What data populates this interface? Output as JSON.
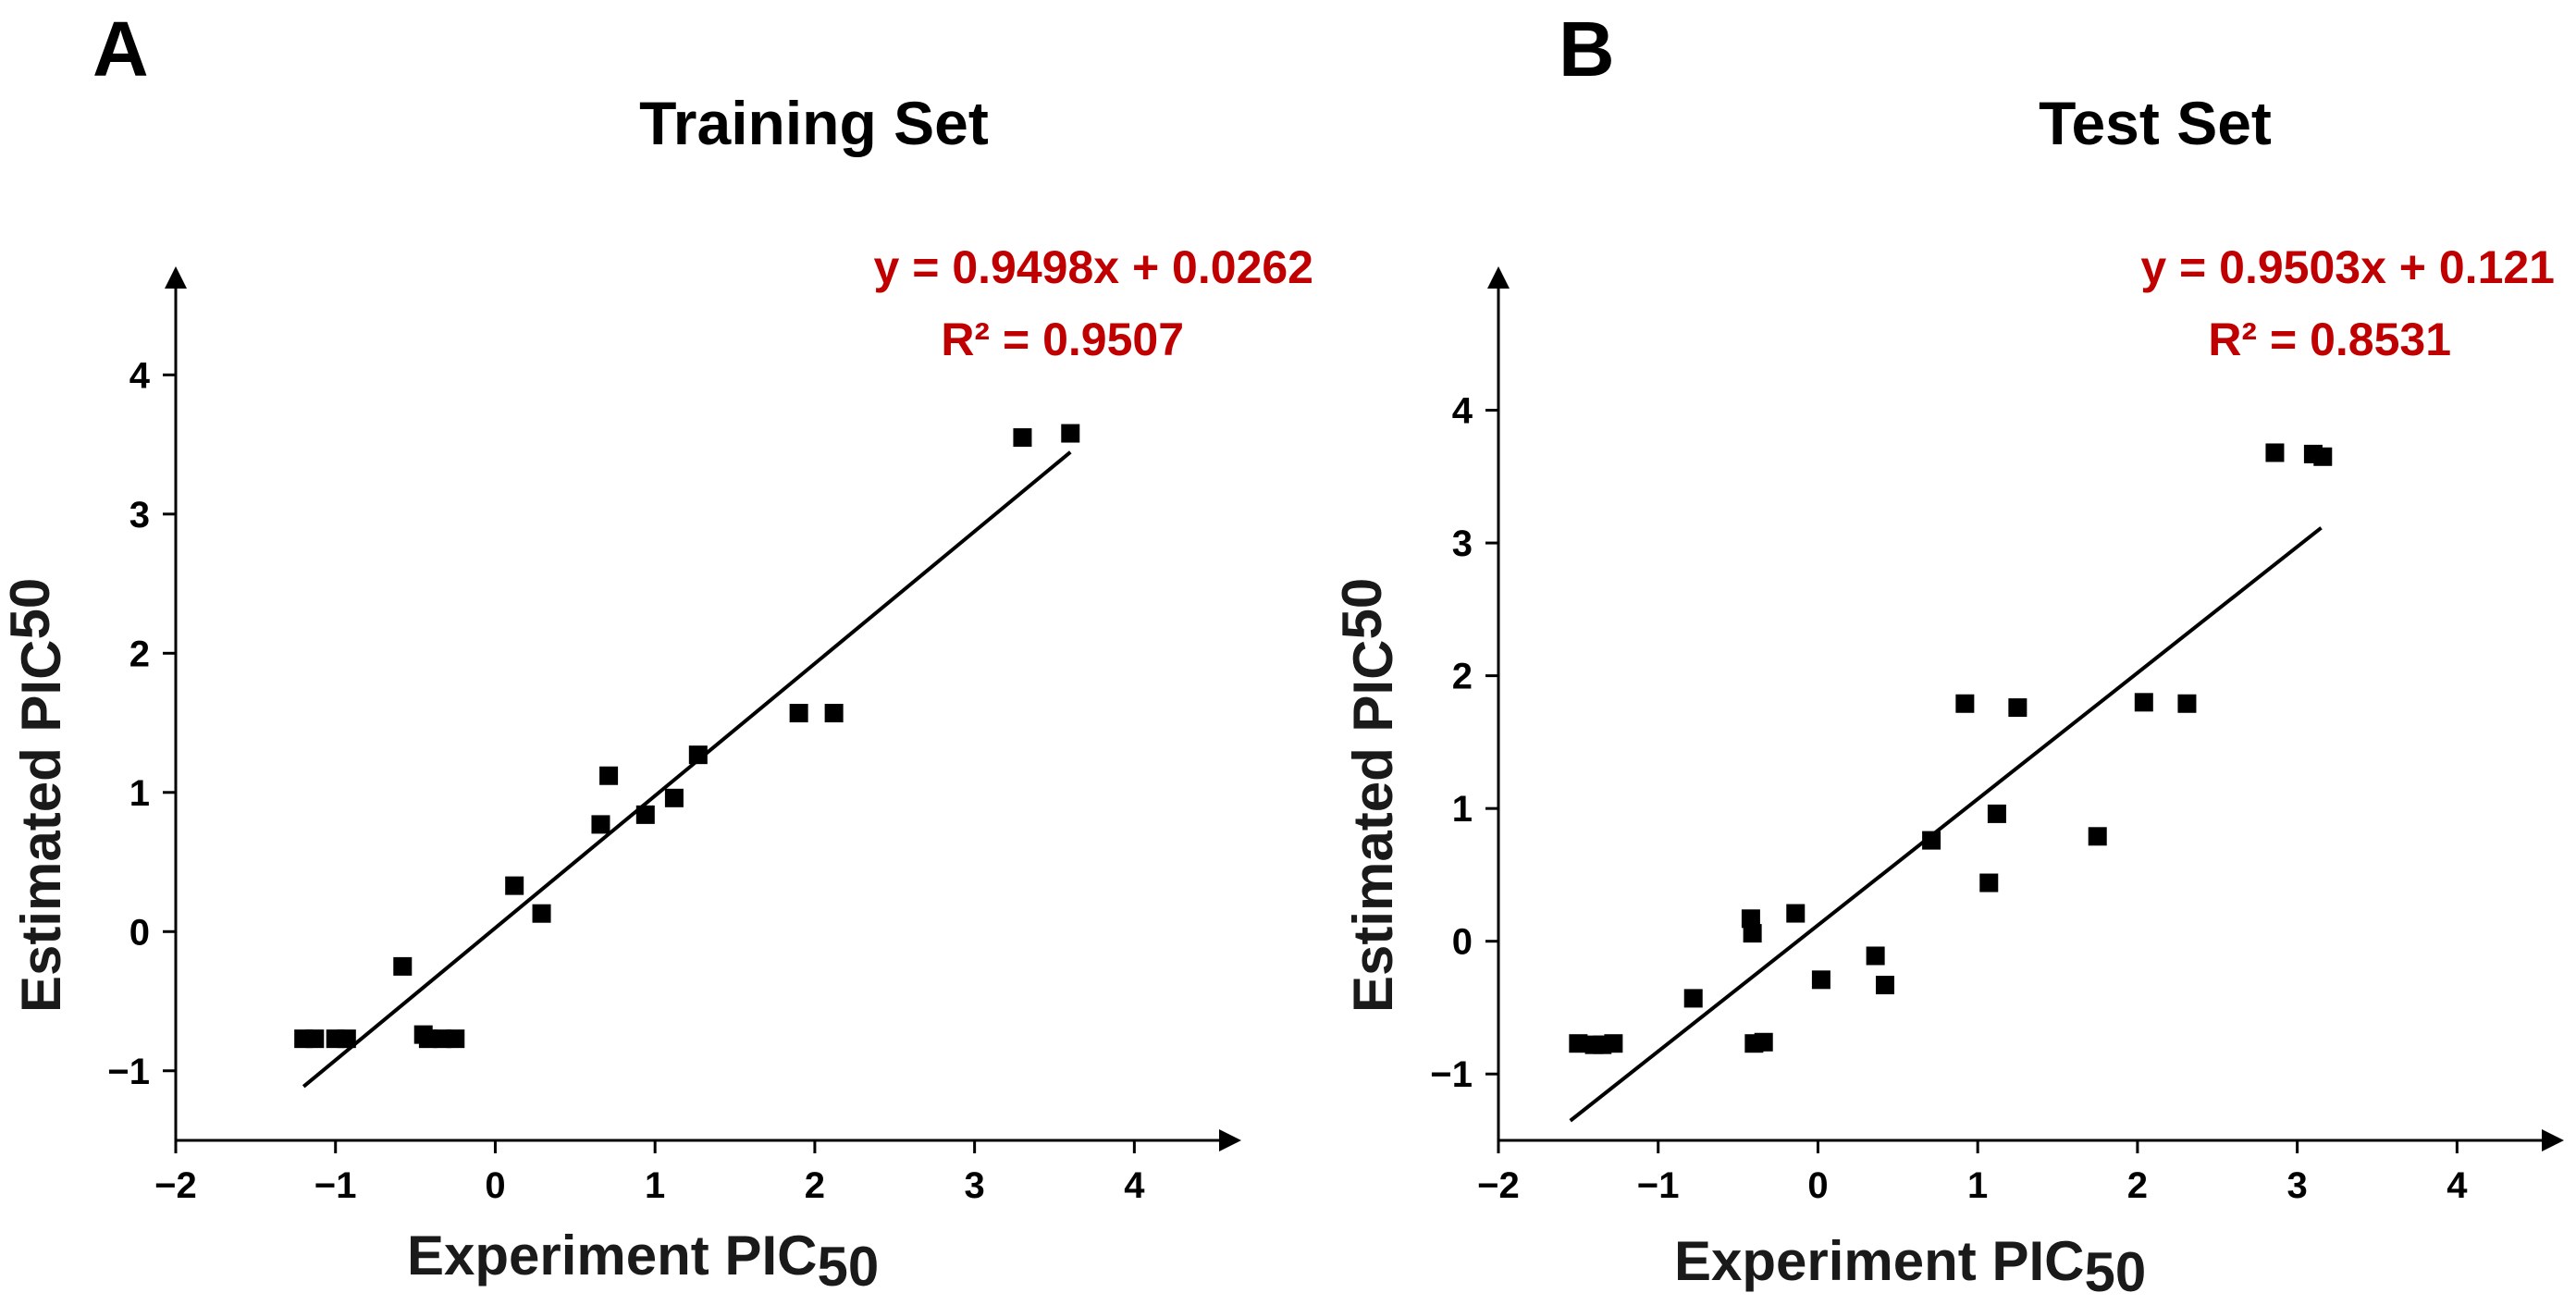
{
  "chart_data": [
    {
      "type": "scatter",
      "panel": "A",
      "title": "Training Set",
      "xlabel": "Experiment PIC",
      "xlabel_sub": "50",
      "ylabel": "Estimated PIC",
      "ylabel_sub": "50",
      "xlim": [
        -2,
        4.6
      ],
      "ylim": [
        -1.5,
        4.7
      ],
      "xticks": [
        -2,
        -1,
        0,
        1,
        2,
        3,
        4
      ],
      "yticks": [
        -1,
        0,
        1,
        2,
        3,
        4
      ],
      "xtick_labels": [
        "−2",
        "−1",
        "0",
        "1",
        "2",
        "3",
        "4"
      ],
      "ytick_labels": [
        "−1",
        "0",
        "1",
        "2",
        "3",
        "4"
      ],
      "equation": "y = 0.9498x + 0.0262",
      "r2": "R² = 0.9507",
      "fit": {
        "slope": 0.9498,
        "intercept": 0.0262,
        "x_range": [
          -1.2,
          3.6
        ]
      },
      "points": [
        {
          "x": -1.2,
          "y": -0.77
        },
        {
          "x": -1.13,
          "y": -0.77
        },
        {
          "x": -1.0,
          "y": -0.77
        },
        {
          "x": -0.93,
          "y": -0.77
        },
        {
          "x": -0.58,
          "y": -0.25
        },
        {
          "x": -0.45,
          "y": -0.74
        },
        {
          "x": -0.42,
          "y": -0.77
        },
        {
          "x": -0.33,
          "y": -0.77
        },
        {
          "x": -0.25,
          "y": -0.77
        },
        {
          "x": 0.12,
          "y": 0.33
        },
        {
          "x": 0.29,
          "y": 0.13
        },
        {
          "x": 0.66,
          "y": 0.77
        },
        {
          "x": 0.71,
          "y": 1.12
        },
        {
          "x": 0.94,
          "y": 0.84
        },
        {
          "x": 1.12,
          "y": 0.96
        },
        {
          "x": 1.27,
          "y": 1.27
        },
        {
          "x": 1.9,
          "y": 1.57
        },
        {
          "x": 2.12,
          "y": 1.57
        },
        {
          "x": 3.3,
          "y": 3.55
        },
        {
          "x": 3.6,
          "y": 3.58
        }
      ]
    },
    {
      "type": "scatter",
      "panel": "B",
      "title": "Test Set",
      "xlabel": "Experiment PIC",
      "xlabel_sub": "50",
      "ylabel": "Estimated PIC",
      "ylabel_sub": "50",
      "xlim": [
        -2,
        4.6
      ],
      "ylim": [
        -1.5,
        5.0
      ],
      "xticks": [
        -2,
        -1,
        0,
        1,
        2,
        3,
        4
      ],
      "yticks": [
        -1,
        0,
        1,
        2,
        3,
        4
      ],
      "xtick_labels": [
        "−2",
        "−1",
        "0",
        "1",
        "2",
        "3",
        "4"
      ],
      "ytick_labels": [
        "−1",
        "0",
        "1",
        "2",
        "3",
        "4"
      ],
      "equation": "y = 0.9503x + 0.121",
      "r2": "R² = 0.8531",
      "fit": {
        "slope": 0.9503,
        "intercept": 0.121,
        "x_range": [
          -1.55,
          3.15
        ]
      },
      "points": [
        {
          "x": -1.5,
          "y": -0.77
        },
        {
          "x": -1.4,
          "y": -0.78
        },
        {
          "x": -1.35,
          "y": -0.78
        },
        {
          "x": -1.28,
          "y": -0.77
        },
        {
          "x": -0.78,
          "y": -0.43
        },
        {
          "x": -0.42,
          "y": 0.17
        },
        {
          "x": -0.41,
          "y": 0.06
        },
        {
          "x": -0.4,
          "y": -0.77
        },
        {
          "x": -0.34,
          "y": -0.76
        },
        {
          "x": -0.14,
          "y": 0.21
        },
        {
          "x": 0.02,
          "y": -0.29
        },
        {
          "x": 0.36,
          "y": -0.11
        },
        {
          "x": 0.42,
          "y": -0.33
        },
        {
          "x": 0.71,
          "y": 0.76
        },
        {
          "x": 0.92,
          "y": 1.79
        },
        {
          "x": 1.07,
          "y": 0.44
        },
        {
          "x": 1.12,
          "y": 0.96
        },
        {
          "x": 1.25,
          "y": 1.76
        },
        {
          "x": 1.75,
          "y": 0.79
        },
        {
          "x": 2.04,
          "y": 1.8
        },
        {
          "x": 2.31,
          "y": 1.79
        },
        {
          "x": 2.86,
          "y": 3.68
        },
        {
          "x": 3.1,
          "y": 3.67
        },
        {
          "x": 3.16,
          "y": 3.65
        }
      ]
    }
  ]
}
